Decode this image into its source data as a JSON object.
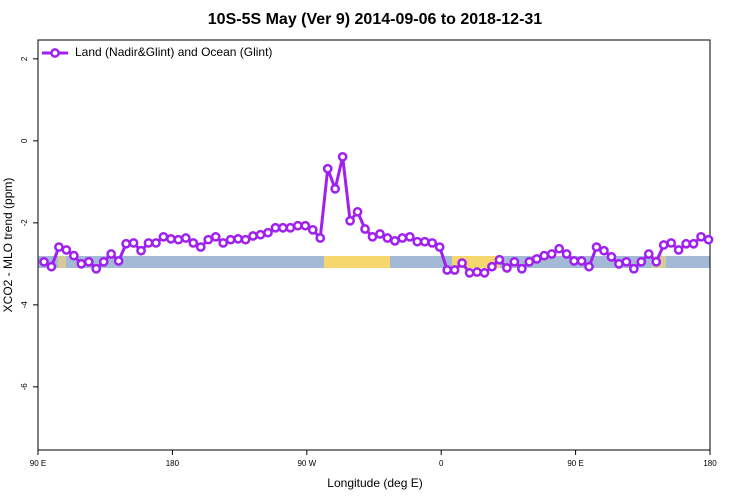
{
  "chart_data": {
    "type": "line",
    "title": "10S-5S May (Ver 9)   2014-09-06 to 2018-12-31",
    "x_label": "Longitude (deg E)",
    "y_label": "XCO2 - MLO trend (ppm)",
    "xlim": [
      90,
      540
    ],
    "xticks": [
      {
        "value": 90,
        "label": "90 E"
      },
      180,
      {
        "value": 270,
        "label": "90 W"
      },
      {
        "value": 360,
        "label": "0"
      },
      {
        "value": 450,
        "label": "90 E"
      },
      {
        "value": 540,
        "label": "180"
      }
    ],
    "ylim": [
      -7.54,
      2.46
    ],
    "yticks": [
      -6,
      -4,
      -2,
      0,
      2
    ],
    "legend": "top-left",
    "x": [
      94,
      99,
      104,
      109,
      114,
      119,
      124,
      129,
      134,
      139,
      144,
      149,
      154,
      159,
      164,
      169,
      174,
      179,
      184,
      189,
      194,
      199,
      204,
      209,
      214,
      219,
      224,
      229,
      234,
      239,
      244,
      249,
      254,
      259,
      264,
      269,
      274,
      279,
      284,
      289,
      294,
      299,
      304,
      309,
      314,
      319,
      324,
      329,
      334,
      339,
      344,
      349,
      354,
      359,
      364,
      369,
      374,
      379,
      384,
      389,
      394,
      399,
      404,
      409,
      414,
      419,
      424,
      429,
      434,
      439,
      444,
      449,
      454,
      459,
      464,
      469,
      474,
      479,
      484,
      489,
      494,
      499,
      504,
      509,
      514,
      519,
      524,
      529,
      534,
      539
    ],
    "series": [
      {
        "name": "Land (Nadir&Glint) and Ocean (Glint)",
        "color": "#a020f0",
        "values": [
          -2.95,
          -3.07,
          -2.59,
          -2.66,
          -2.8,
          -3.0,
          -2.95,
          -3.12,
          -2.95,
          -2.76,
          -2.93,
          -2.51,
          -2.49,
          -2.68,
          -2.49,
          -2.49,
          -2.34,
          -2.39,
          -2.41,
          -2.37,
          -2.49,
          -2.59,
          -2.41,
          -2.34,
          -2.49,
          -2.41,
          -2.39,
          -2.41,
          -2.32,
          -2.29,
          -2.24,
          -2.12,
          -2.12,
          -2.12,
          -2.07,
          -2.07,
          -2.17,
          -2.37,
          -0.68,
          -1.17,
          -0.39,
          -1.95,
          -1.73,
          -2.15,
          -2.34,
          -2.27,
          -2.37,
          -2.44,
          -2.37,
          -2.34,
          -2.46,
          -2.46,
          -2.49,
          -2.59,
          -3.15,
          -3.15,
          -2.98,
          -3.22,
          -3.2,
          -3.22,
          -3.07,
          -2.9,
          -3.1,
          -2.95,
          -3.12,
          -2.95,
          -2.88,
          -2.8,
          -2.76,
          -2.63,
          -2.76,
          -2.93,
          -2.93,
          -3.07,
          -2.59,
          -2.68,
          -2.83,
          -3.0,
          -2.95,
          -3.12,
          -2.95,
          -2.76,
          -2.95,
          -2.54,
          -2.49,
          -2.66,
          -2.51,
          -2.51,
          -2.34,
          -2.41
        ]
      }
    ]
  }
}
